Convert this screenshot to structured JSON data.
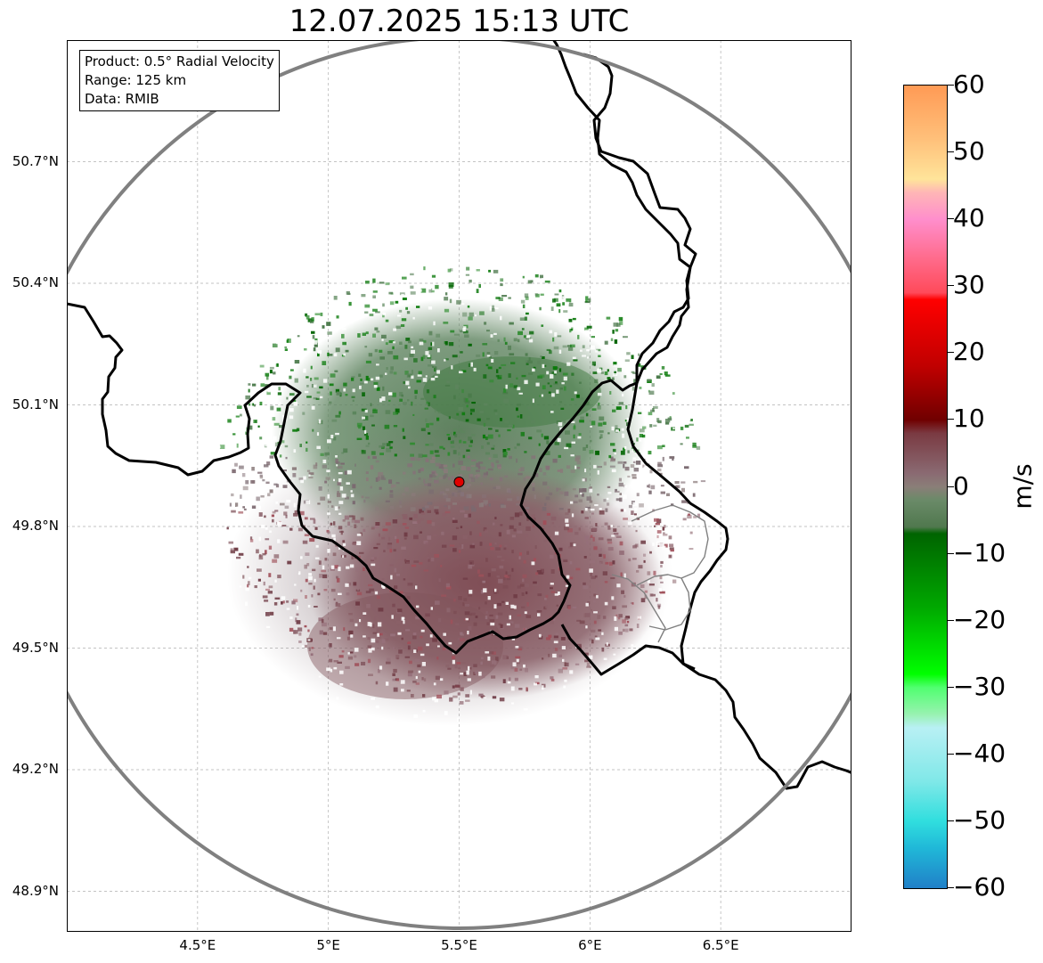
{
  "title": "12.07.2025 15:13 UTC",
  "info_box": {
    "product": "Product: 0.5° Radial Velocity",
    "range": "Range: 125 km",
    "data": "Data: RMIB"
  },
  "map": {
    "lon_range": [
      4.0,
      7.0
    ],
    "lat_range": [
      48.8,
      51.0
    ],
    "radar_site": {
      "lon": 5.5,
      "lat": 49.91
    },
    "range_ring_color": "#808080",
    "border_color": "#000000",
    "lat_ticks": [
      {
        "value": 50.7,
        "label": "50.7°N"
      },
      {
        "value": 50.4,
        "label": "50.4°N"
      },
      {
        "value": 50.1,
        "label": "50.1°N"
      },
      {
        "value": 49.8,
        "label": "49.8°N"
      },
      {
        "value": 49.5,
        "label": "49.5°N"
      },
      {
        "value": 49.2,
        "label": "49.2°N"
      },
      {
        "value": 48.9,
        "label": "48.9°N"
      }
    ],
    "lon_ticks": [
      {
        "value": 4.5,
        "label": "4.5°E"
      },
      {
        "value": 5.0,
        "label": "5°E"
      },
      {
        "value": 5.5,
        "label": "5.5°E"
      },
      {
        "value": 6.0,
        "label": "6°E"
      },
      {
        "value": 6.5,
        "label": "6.5°E"
      }
    ],
    "gridlines": true
  },
  "colorbar": {
    "unit": "m/s",
    "range": [
      -60,
      60
    ],
    "ticks": [
      {
        "value": 60,
        "label": "60"
      },
      {
        "value": 50,
        "label": "50"
      },
      {
        "value": 40,
        "label": "40"
      },
      {
        "value": 30,
        "label": "30"
      },
      {
        "value": 20,
        "label": "20"
      },
      {
        "value": 10,
        "label": "10"
      },
      {
        "value": 0,
        "label": "0"
      },
      {
        "value": -10,
        "label": "−10"
      },
      {
        "value": -20,
        "label": "−20"
      },
      {
        "value": -30,
        "label": "−30"
      },
      {
        "value": -40,
        "label": "−40"
      },
      {
        "value": -50,
        "label": "−50"
      },
      {
        "value": -60,
        "label": "−60"
      }
    ],
    "stops": [
      {
        "value": 60,
        "color": "#ff9a55"
      },
      {
        "value": 52,
        "color": "#ffc07a"
      },
      {
        "value": 46,
        "color": "#ffe49a"
      },
      {
        "value": 44,
        "color": "#ffb6b6"
      },
      {
        "value": 40,
        "color": "#ff8ecc"
      },
      {
        "value": 34,
        "color": "#ff6a8a"
      },
      {
        "value": 29,
        "color": "#ff4a5a"
      },
      {
        "value": 28,
        "color": "#ff0000"
      },
      {
        "value": 18,
        "color": "#c00000"
      },
      {
        "value": 10,
        "color": "#700000"
      },
      {
        "value": 8,
        "color": "#7a3a42"
      },
      {
        "value": 2,
        "color": "#8a6a72"
      },
      {
        "value": 0,
        "color": "#8a7e78"
      },
      {
        "value": -2,
        "color": "#6a8a68"
      },
      {
        "value": -6,
        "color": "#50784e"
      },
      {
        "value": -7,
        "color": "#006400"
      },
      {
        "value": -18,
        "color": "#00a800"
      },
      {
        "value": -28,
        "color": "#00ff00"
      },
      {
        "value": -30,
        "color": "#50ff70"
      },
      {
        "value": -34,
        "color": "#98f2b0"
      },
      {
        "value": -36,
        "color": "#b8f0f4"
      },
      {
        "value": -44,
        "color": "#80e8e8"
      },
      {
        "value": -50,
        "color": "#30dede"
      },
      {
        "value": -54,
        "color": "#20b8d8"
      },
      {
        "value": -60,
        "color": "#2080c8"
      }
    ]
  }
}
